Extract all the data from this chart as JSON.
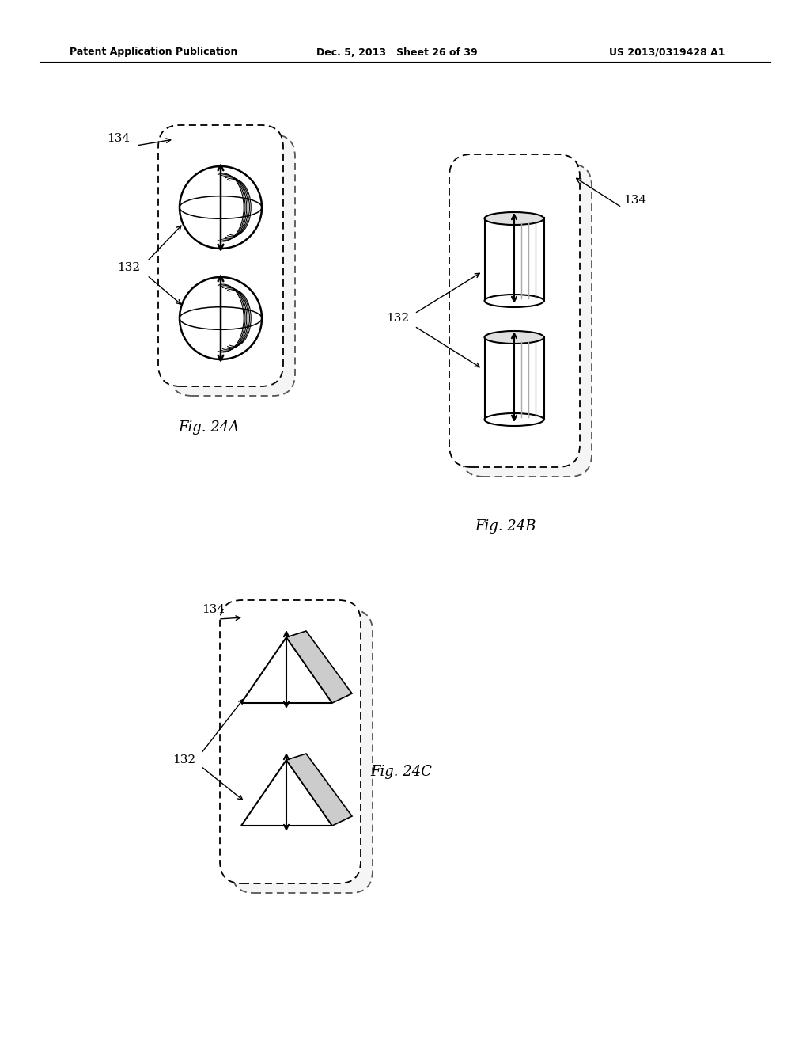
{
  "bg_color": "#ffffff",
  "header_left": "Patent Application Publication",
  "header_mid": "Dec. 5, 2013   Sheet 26 of 39",
  "header_right": "US 2013/0319428 A1",
  "fig24a_label": "Fig. 24A",
  "fig24b_label": "Fig. 24B",
  "fig24c_label": "Fig. 24C",
  "label_134": "134",
  "label_132": "132"
}
